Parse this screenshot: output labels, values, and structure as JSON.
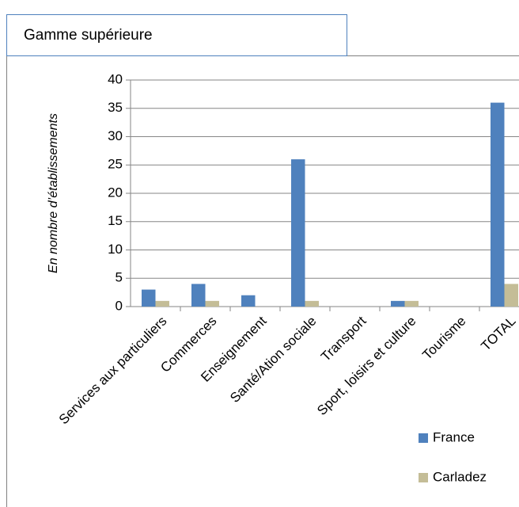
{
  "chart_data": {
    "type": "bar",
    "title": "Gamme supérieure",
    "y_label": "En nombre d’établissements",
    "categories": [
      "Services aux particuliers",
      "Commerces",
      "Enseignement",
      "Santé/Ation sociale",
      "Transport",
      "Sport, loisirs et culture",
      "Tourisme",
      "TOTAL"
    ],
    "series": [
      {
        "name": "France",
        "color": "#4f81bd",
        "values": [
          3,
          4,
          2,
          26,
          0,
          1,
          0,
          36
        ]
      },
      {
        "name": "Carladez",
        "color": "#c4bd97",
        "values": [
          1,
          1,
          0,
          1,
          0,
          1,
          0,
          4
        ]
      }
    ],
    "ylim": [
      0,
      40
    ],
    "yticks": [
      0,
      5,
      10,
      15,
      20,
      25,
      30,
      35,
      40
    ],
    "grid": true,
    "legend": "bottom-right"
  }
}
